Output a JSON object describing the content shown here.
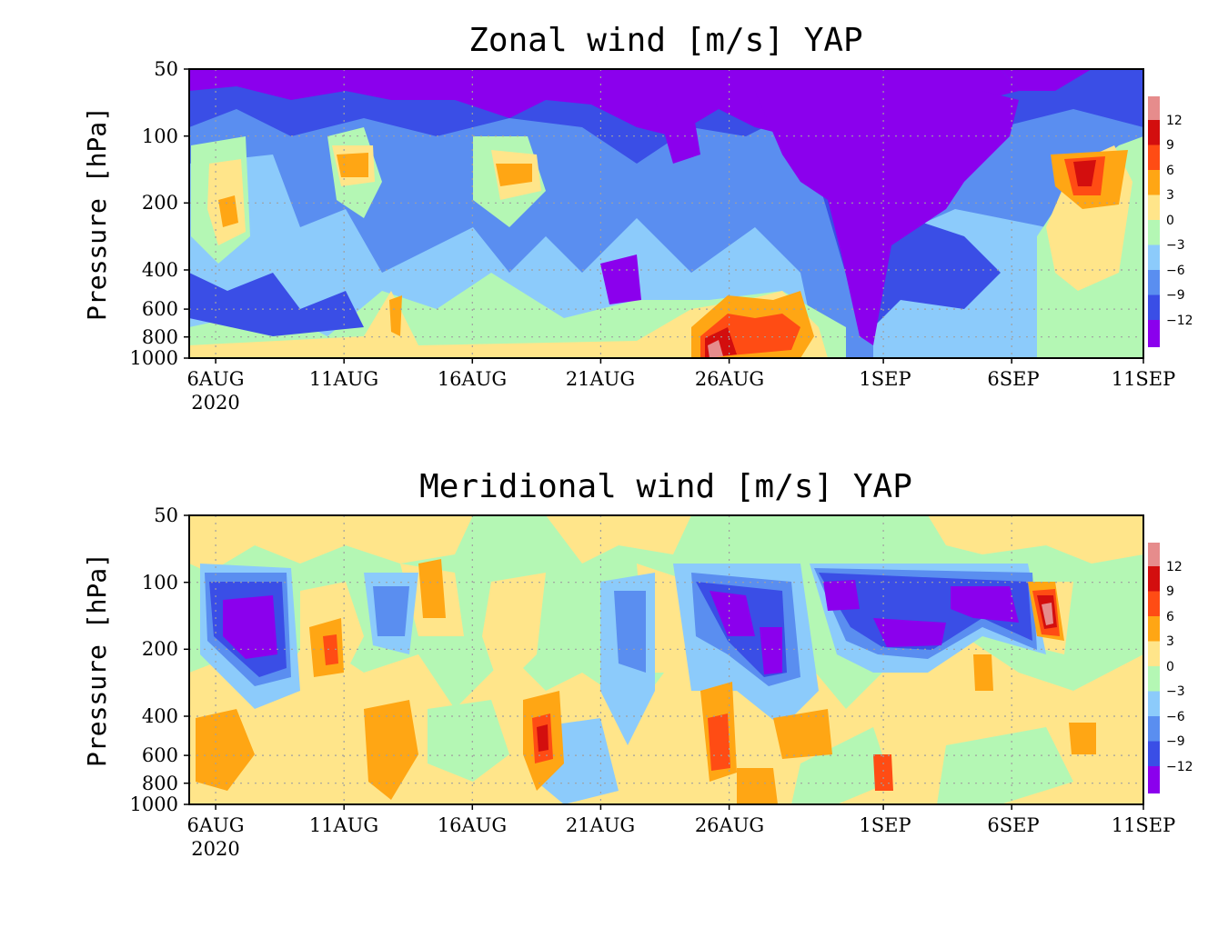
{
  "chart_data": [
    {
      "type": "heatmap",
      "subtype": "filled-contour time-pressure cross-section",
      "title": "Zonal wind [m/s] YAP",
      "ylabel": "Pressure [hPa]",
      "xlabel": "",
      "x_ticks": [
        "6AUG",
        "11AUG",
        "16AUG",
        "21AUG",
        "26AUG",
        "1SEP",
        "6SEP",
        "11SEP"
      ],
      "x_year": "2020",
      "x_range": [
        "2020-08-06",
        "2020-09-11"
      ],
      "y_ticks": [
        "50",
        "100",
        "200",
        "400",
        "600",
        "800",
        "1000"
      ],
      "y_scale": "log",
      "ylim": [
        1000,
        50
      ],
      "grid": "dotted",
      "colorbar_levels": [
        "12",
        "9",
        "6",
        "3",
        "0",
        "-3",
        "-6",
        "-9",
        "-12"
      ],
      "colorbar_placement": "right",
      "features": [
        {
          "time": "2020-08-06 to 2020-09-04",
          "pressure": "50-100",
          "value_range": "below -12",
          "desc": "strong easterlies aloft"
        },
        {
          "time": "2020-08-23 to 2020-09-03",
          "pressure": "100-500",
          "value_range": "below -12",
          "desc": "deep easterly core"
        },
        {
          "time": "2020-09-07 to 2020-09-09",
          "pressure": "120-200",
          "value_range": "6 to 12",
          "desc": "upper westerly maximum"
        },
        {
          "time": "2020-08-25 to 2020-08-29",
          "pressure": "600-1000",
          "value_range": "3 to 15",
          "desc": "low-level westerly burst"
        },
        {
          "time": "2020-08-11 to 2020-08-12",
          "pressure": "130-170",
          "value_range": "0 to 6",
          "desc": "weak upper westerlies"
        },
        {
          "time": "2020-08-17 to 2020-08-19",
          "pressure": "140-180",
          "value_range": "0 to 6",
          "desc": "weak upper westerlies"
        },
        {
          "time": "2020-08-07",
          "pressure": "200-300",
          "value_range": "0 to 6",
          "desc": "isolated westerly patch"
        }
      ]
    },
    {
      "type": "heatmap",
      "subtype": "filled-contour time-pressure cross-section",
      "title": "Meridional wind [m/s] YAP",
      "ylabel": "Pressure [hPa]",
      "xlabel": "",
      "x_ticks": [
        "6AUG",
        "11AUG",
        "16AUG",
        "21AUG",
        "26AUG",
        "1SEP",
        "6SEP",
        "11SEP"
      ],
      "x_year": "2020",
      "x_range": [
        "2020-08-06",
        "2020-09-11"
      ],
      "y_ticks": [
        "50",
        "100",
        "200",
        "400",
        "600",
        "800",
        "1000"
      ],
      "y_scale": "log",
      "ylim": [
        1000,
        50
      ],
      "grid": "dotted",
      "colorbar_levels": [
        "12",
        "9",
        "6",
        "3",
        "0",
        "-3",
        "-6",
        "-9",
        "-12"
      ],
      "colorbar_placement": "right",
      "features": [
        {
          "time": "2020-08-07 to 2020-08-09",
          "pressure": "110-230",
          "value_range": "below -9",
          "desc": "upper northerly core"
        },
        {
          "time": "2020-08-25 to 2020-08-28",
          "pressure": "100-300",
          "value_range": "below -9",
          "desc": "upper northerly core"
        },
        {
          "time": "2020-08-30 to 2020-09-06",
          "pressure": "100-200",
          "value_range": "below -9",
          "desc": "upper northerly band"
        },
        {
          "time": "2020-09-07",
          "pressure": "110-170",
          "value_range": "9 to 15",
          "desc": "upper southerly maximum"
        },
        {
          "time": "2020-08-18 to 2020-08-19",
          "pressure": "400-700",
          "value_range": "6 to 12",
          "desc": "mid-level southerlies"
        },
        {
          "time": "2020-08-25 to 2020-08-26",
          "pressure": "400-700",
          "value_range": "6 to 12",
          "desc": "mid-level southerlies"
        },
        {
          "time": "2020-08-06 to 2020-08-08",
          "pressure": "400-1000",
          "value_range": "3 to 9",
          "desc": "low-level southerlies"
        }
      ]
    }
  ],
  "colors": {
    "c_lt_m12": "#8b00ed",
    "c_m12_m9": "#3a4ee6",
    "c_m9_m6": "#5a8ef0",
    "c_m6_m3": "#8ccbfb",
    "c_m3_0": "#b4f7b4",
    "c_0_3": "#ffe58a",
    "c_3_6": "#ffa614",
    "c_6_9": "#ff4c14",
    "c_9_12": "#d30e0e",
    "c_gt_12": "#e68c8c"
  }
}
